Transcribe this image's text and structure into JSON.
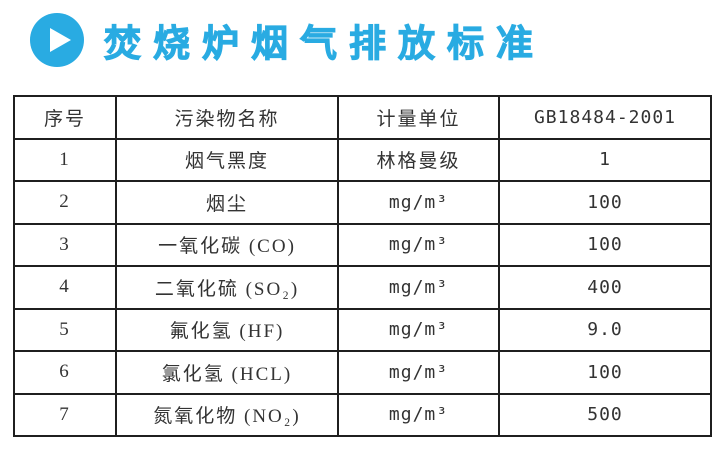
{
  "header": {
    "title": "焚烧炉烟气排放标准",
    "accent_color": "#29abe2",
    "icon": "play-icon"
  },
  "table": {
    "columns": [
      "序号",
      "污染物名称",
      "计量单位",
      "GB18484-2001"
    ],
    "rows": [
      {
        "no": "1",
        "pollutant": "烟气黑度",
        "unit": "林格曼级",
        "value": "1"
      },
      {
        "no": "2",
        "pollutant": "烟尘",
        "unit": "mg/m³",
        "value": "100"
      },
      {
        "no": "3",
        "pollutant": "一氧化碳 (CO)",
        "unit": "mg/m³",
        "value": "100"
      },
      {
        "no": "4",
        "pollutant": "二氧化硫 (SO₂)",
        "unit": "mg/m³",
        "value": "400"
      },
      {
        "no": "5",
        "pollutant": "氟化氢 (HF)",
        "unit": "mg/m³",
        "value": "9.0"
      },
      {
        "no": "6",
        "pollutant": "氯化氢 (HCL)",
        "unit": "mg/m³",
        "value": "100"
      },
      {
        "no": "7",
        "pollutant": "氮氧化物 (NO₂)",
        "unit": "mg/m³",
        "value": "500"
      }
    ]
  }
}
